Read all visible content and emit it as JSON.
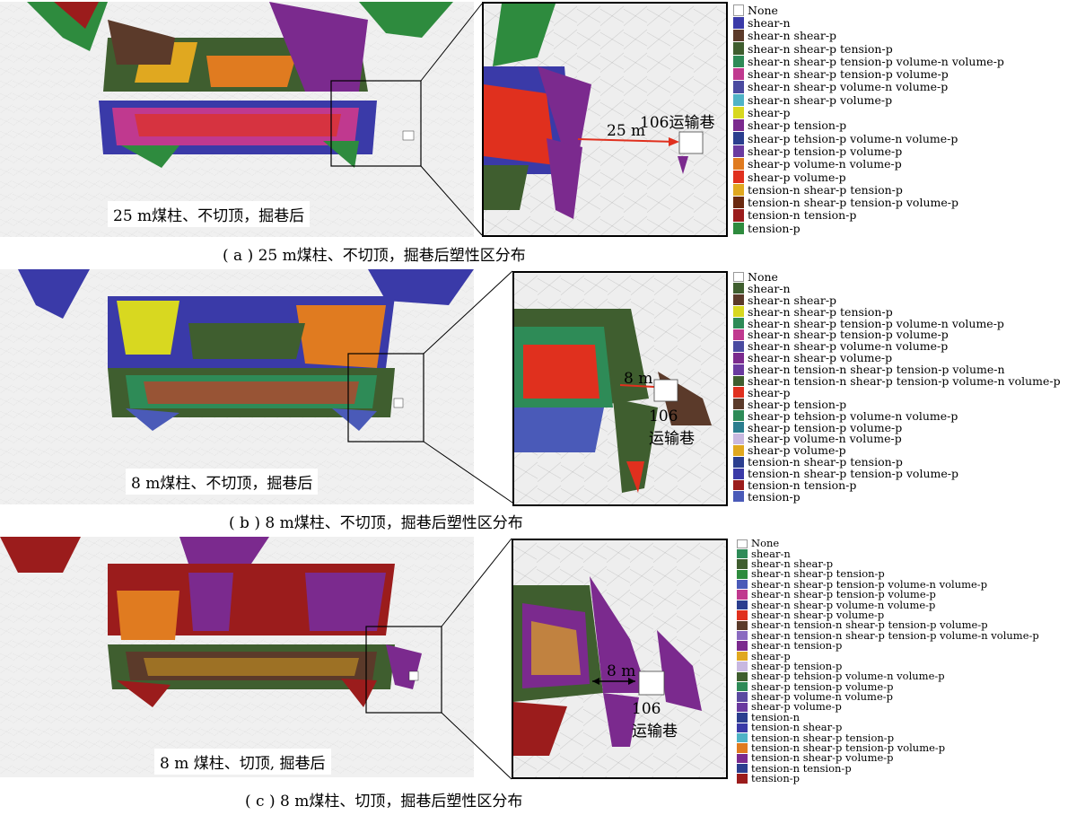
{
  "panels": [
    {
      "caption": "( a ) 25 m煤柱、不切顶，掘巷后塑性区分布",
      "sim_label": "25 m煤柱、不切顶，掘巷后",
      "distance_label": "25 m",
      "roadway_label": "106运输巷",
      "legend": [
        {
          "label": "None",
          "color": "#ffffff"
        },
        {
          "label": "shear-n",
          "color": "#3a3aa8"
        },
        {
          "label": "shear-n shear-p",
          "color": "#5b3a2a"
        },
        {
          "label": "shear-n shear-p tension-p",
          "color": "#3f5e2f"
        },
        {
          "label": "shear-n shear-p tension-p volume-n volume-p",
          "color": "#2e8b57"
        },
        {
          "label": "shear-n shear-p tension-p volume-p",
          "color": "#c0398f"
        },
        {
          "label": "shear-n shear-p volume-n volume-p",
          "color": "#4a4aa0"
        },
        {
          "label": "shear-n shear-p volume-p",
          "color": "#4fb3c6"
        },
        {
          "label": "shear-p",
          "color": "#d8d820"
        },
        {
          "label": "shear-p tension-p",
          "color": "#7b2a8e"
        },
        {
          "label": "shear-p tehsion-p volume-n volume-p",
          "color": "#2b3e8f"
        },
        {
          "label": "shear-p tension-p volume-p",
          "color": "#6a3aa0"
        },
        {
          "label": "shear-p volume-n volume-p",
          "color": "#e07b20"
        },
        {
          "label": "shear-p volume-p",
          "color": "#e0301e"
        },
        {
          "label": "tension-n shear-p tension-p",
          "color": "#e0a820"
        },
        {
          "label": "tension-n shear-p tension-p volume-p",
          "color": "#6b2a10"
        },
        {
          "label": "tension-n tension-p",
          "color": "#9b1c1c"
        },
        {
          "label": "tension-p",
          "color": "#2e8b3e"
        }
      ]
    },
    {
      "caption": "( b ) 8 m煤柱、不切顶，掘巷后塑性区分布",
      "sim_label": "8 m煤柱、不切顶，掘巷后",
      "distance_label": "8 m",
      "roadway_label": "106\n运输巷",
      "legend": [
        {
          "label": "None",
          "color": "#ffffff"
        },
        {
          "label": "shear-n",
          "color": "#3f5e2f"
        },
        {
          "label": "shear-n shear-p",
          "color": "#5b3a2a"
        },
        {
          "label": "shear-n shear-p tension-p",
          "color": "#d8d820"
        },
        {
          "label": "shear-n shear-p tension-p volume-n volume-p",
          "color": "#2e8b57"
        },
        {
          "label": "shear-n shear-p tension-p volume-p",
          "color": "#c0398f"
        },
        {
          "label": "shear-n shear-p volume-n volume-p",
          "color": "#4a4aa0"
        },
        {
          "label": "shear-n shear-p volume-p",
          "color": "#7b2a8e"
        },
        {
          "label": "shear-n tension-n shear-p tension-p volume-n",
          "color": "#6a3aa0"
        },
        {
          "label": "shear-n tension-n shear-p tension-p volume-n volume-p",
          "color": "#3f5e2f"
        },
        {
          "label": "shear-p",
          "color": "#e0301e"
        },
        {
          "label": "shear-p tension-p",
          "color": "#5b3a2a"
        },
        {
          "label": "shear-p tehsion-p volume-n volume-p",
          "color": "#2e8b57"
        },
        {
          "label": "shear-p tension-p volume-p",
          "color": "#2b7e8f"
        },
        {
          "label": "shear-p volume-n volume-p",
          "color": "#c8b8e0"
        },
        {
          "label": "shear-p volume-p",
          "color": "#e0a820"
        },
        {
          "label": "tension-n shear-p tension-p",
          "color": "#2b3e8f"
        },
        {
          "label": "tension-n shear-p tension-p volume-p",
          "color": "#3a3aa8"
        },
        {
          "label": "tension-n tension-p",
          "color": "#9b1c1c"
        },
        {
          "label": "tension-p",
          "color": "#4a5ab8"
        }
      ]
    },
    {
      "caption": "( c ) 8 m煤柱、切顶，掘巷后塑性区分布",
      "sim_label": "8 m 煤柱、切顶, 掘巷后",
      "distance_label": "8 m",
      "roadway_label": "106\n运输巷",
      "legend": [
        {
          "label": "None",
          "color": "#ffffff"
        },
        {
          "label": "shear-n",
          "color": "#2e8b57"
        },
        {
          "label": "shear-n shear-p",
          "color": "#3f5e2f"
        },
        {
          "label": "shear-n shear-p tension-p",
          "color": "#2e8b3e"
        },
        {
          "label": "shear-n shear-p tension-p volume-n volume-p",
          "color": "#4a5ab8"
        },
        {
          "label": "shear-n shear-p tension-p volume-p",
          "color": "#c0398f"
        },
        {
          "label": "shear-n shear-p volume-n volume-p",
          "color": "#2b3e8f"
        },
        {
          "label": "shear-n shear-p volume-p",
          "color": "#e0301e"
        },
        {
          "label": "shear-n tension-n shear-p tension-p volume-p",
          "color": "#5b3a2a"
        },
        {
          "label": "shear-n tension-n shear-p tension-p volume-n volume-p",
          "color": "#8a6ac0"
        },
        {
          "label": "shear-n tension-p",
          "color": "#7b2a8e"
        },
        {
          "label": "shear-p",
          "color": "#e0a820"
        },
        {
          "label": "shear-p tension-p",
          "color": "#c8b8e0"
        },
        {
          "label": "shear-p tehsion-p volume-n volume-p",
          "color": "#3f5e2f"
        },
        {
          "label": "shear-p tension-p volume-p",
          "color": "#2e8b57"
        },
        {
          "label": "shear-p volume-n volume-p",
          "color": "#5a4aa0"
        },
        {
          "label": "shear-p volume-p",
          "color": "#6a3aa0"
        },
        {
          "label": "tension-n",
          "color": "#2b3e8f"
        },
        {
          "label": "tension-n shear-p",
          "color": "#3a3aa8"
        },
        {
          "label": "tension-n shear-p tension-p",
          "color": "#4fb3c6"
        },
        {
          "label": "tension-n shear-p tension-p volume-p",
          "color": "#e07b20"
        },
        {
          "label": "tension-n shear-p volume-p",
          "color": "#7b2a8e"
        },
        {
          "label": "tension-n tension-p",
          "color": "#2b3e8f"
        },
        {
          "label": "tension-p",
          "color": "#9b1c1c"
        }
      ]
    }
  ]
}
